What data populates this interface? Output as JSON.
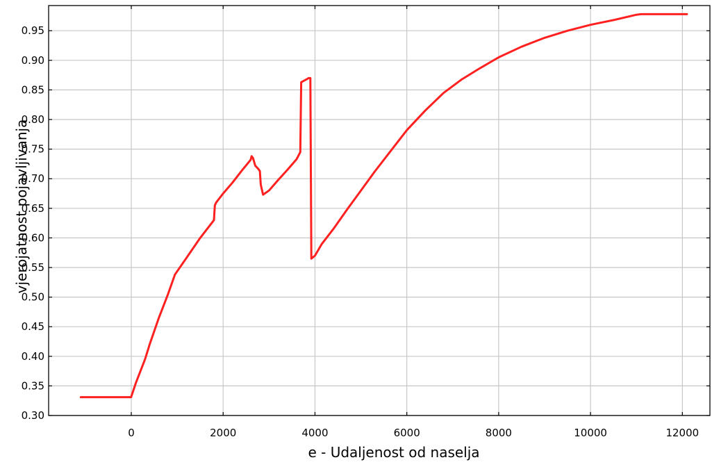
{
  "chart_data": {
    "type": "line",
    "title": "",
    "xlabel": "e - Udaljenost od naselja",
    "ylabel": "vjerojatnost pojavljivanja",
    "xlim": [
      -1800,
      12600
    ],
    "ylim": [
      0.3,
      0.9925
    ],
    "grid": true,
    "x_ticks": [
      0,
      2000,
      4000,
      6000,
      8000,
      10000,
      12000
    ],
    "x_tick_labels": [
      "0",
      "2000",
      "4000",
      "6000",
      "8000",
      "10000",
      "12000"
    ],
    "y_ticks": [
      0.3,
      0.35,
      0.4,
      0.45,
      0.5,
      0.55,
      0.6,
      0.65,
      0.7,
      0.75,
      0.8,
      0.85,
      0.9,
      0.95
    ],
    "y_tick_labels": [
      "0.30",
      "0.35",
      "0.40",
      "0.45",
      "0.50",
      "0.55",
      "0.60",
      "0.65",
      "0.70",
      "0.75",
      "0.80",
      "0.85",
      "0.90",
      "0.95"
    ],
    "series": [
      {
        "color": "#ff2020",
        "x": [
          -1100,
          -5,
          100,
          300,
          400,
          600,
          800,
          950,
          1200,
          1500,
          1800,
          1820,
          1850,
          2000,
          2200,
          2400,
          2600,
          2620,
          2650,
          2700,
          2760,
          2800,
          2820,
          2870,
          3000,
          3200,
          3400,
          3600,
          3680,
          3700,
          3820,
          3860,
          3900,
          3920,
          4000,
          4150,
          4400,
          4700,
          5000,
          5300,
          5700,
          6000,
          6400,
          6800,
          7200,
          7600,
          8000,
          8500,
          9000,
          9500,
          10000,
          10500,
          11000,
          11100,
          12100
        ],
        "y": [
          0.331,
          0.331,
          0.355,
          0.395,
          0.42,
          0.465,
          0.505,
          0.538,
          0.566,
          0.6,
          0.63,
          0.655,
          0.66,
          0.675,
          0.693,
          0.713,
          0.732,
          0.738,
          0.735,
          0.722,
          0.717,
          0.713,
          0.69,
          0.673,
          0.68,
          0.698,
          0.715,
          0.733,
          0.745,
          0.863,
          0.868,
          0.87,
          0.87,
          0.565,
          0.57,
          0.59,
          0.615,
          0.648,
          0.68,
          0.712,
          0.752,
          0.782,
          0.815,
          0.845,
          0.868,
          0.887,
          0.905,
          0.923,
          0.938,
          0.95,
          0.96,
          0.968,
          0.977,
          0.978,
          0.978
        ]
      }
    ]
  }
}
